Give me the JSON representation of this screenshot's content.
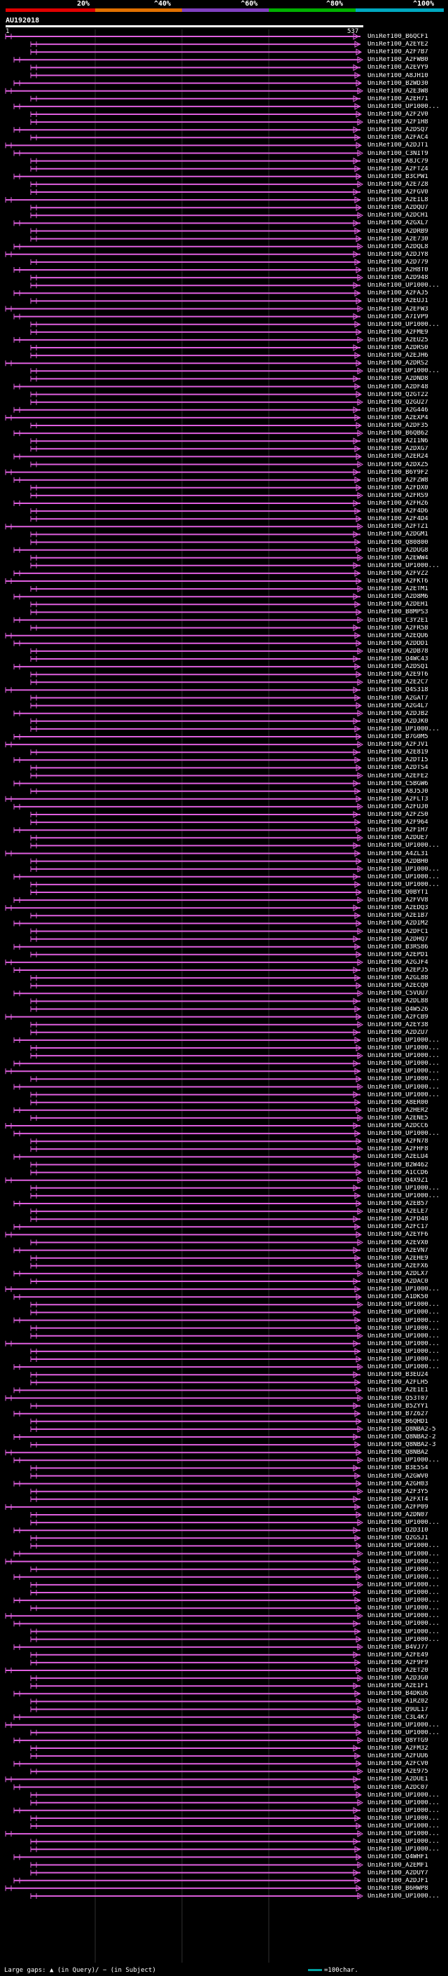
{
  "scale": {
    "labels": [
      "20%",
      "^40%",
      "^60%",
      "^80%",
      "^100%"
    ],
    "colors": [
      "#e00000",
      "#e07000",
      "#8040c0",
      "#00b000",
      "#00a8c0"
    ]
  },
  "query": {
    "name": "AU192018",
    "start": "1",
    "end": "537"
  },
  "hit_color": "#e060e0",
  "chart_data": {
    "type": "alignment-map",
    "query_length": 537,
    "hits": [
      "UniRef100_B6QCF1",
      "UniRef100_A2EYE2",
      "UniRef100_A2F7B7",
      "UniRef100_A2FWB0",
      "UniRef100_A2EVY9",
      "UniRef100_A8JH10",
      "UniRef100_B2WD30",
      "UniRef100_A2E3W8",
      "UniRef100_A2EH71",
      "UniRef100_UP1000...",
      "UniRef100_A2F2V0",
      "UniRef100_A2F1H8",
      "UniRef100_A2DSQ7",
      "UniRef100_A2FAC4",
      "UniRef100_A2DJT1",
      "UniRef100_C3NIT9",
      "UniRef100_A8JC79",
      "UniRef100_A2FTZ4",
      "UniRef100_B3CPW1",
      "UniRef100_A2E7Z8",
      "UniRef100_A2FGV0",
      "UniRef100_A2EIL8",
      "UniRef100_A2DQU7",
      "UniRef100_A2DCH1",
      "UniRef100_A2GXL7",
      "UniRef100_A2DRB9",
      "UniRef100_A2E730",
      "UniRef100_A2DQL8",
      "UniRef100_A2DJY8",
      "UniRef100_A2D779",
      "UniRef100_A2H8T0",
      "UniRef100_A2D948",
      "UniRef100_UP1000...",
      "UniRef100_A2FAJ5",
      "UniRef100_A2EUJ1",
      "UniRef100_A2EFW3",
      "UniRef100_A7IVP9",
      "UniRef100_UP1000...",
      "UniRef100_A2FME9",
      "UniRef100_A2EU25",
      "UniRef100_A2DRS0",
      "UniRef100_A2EJH6",
      "UniRef100_A2DRS2",
      "UniRef100_UP1000...",
      "UniRef100_A2DND8",
      "UniRef100_A2DF48",
      "UniRef100_Q2GT22",
      "UniRef100_Q2GU27",
      "UniRef100_A2G446",
      "UniRef100_A2EXP4",
      "UniRef100_A2DF35",
      "UniRef100_B6QB62",
      "UniRef100_A2I1N6",
      "UniRef100_A2DXG7",
      "UniRef100_A2ER24",
      "UniRef100_A2DXZ5",
      "UniRef100_B6Y9F2",
      "UniRef100_A2FZW8",
      "UniRef100_A2FDX0",
      "UniRef100_A2FRS9",
      "UniRef100_A2FHZ6",
      "UniRef100_A2F4D6",
      "UniRef100_A2F4D4",
      "UniRef100_A2FTZ1",
      "UniRef100_A2DGM1",
      "UniRef100_Q80800",
      "UniRef100_A2DUG8",
      "UniRef100_A2EWW4",
      "UniRef100_UP1000...",
      "UniRef100_A2FVZ2",
      "UniRef100_A2FKT6",
      "UniRef100_A2ETM1",
      "UniRef100_A2D8M6",
      "UniRef100_A2DEH1",
      "UniRef100_B8MPS3",
      "UniRef100_C3Y2E1",
      "UniRef100_A2FR58",
      "UniRef100_A2EQU6",
      "UniRef100_A2DDD1",
      "UniRef100_A2DB78",
      "UniRef100_Q4WC43",
      "UniRef100_A2DSQ1",
      "UniRef100_A2E9T6",
      "UniRef100_A2E2C7",
      "UniRef100_Q4S318",
      "UniRef100_A2GAT7",
      "UniRef100_A2G4L7",
      "UniRef100_A2DJB2",
      "UniRef100_A2DJK0",
      "UniRef100_UP1000...",
      "UniRef100_B7G0M5",
      "UniRef100_A2FJV1",
      "UniRef100_A2E819",
      "UniRef100_A2DTI5",
      "UniRef100_A2DTS4",
      "UniRef100_A2EFE2",
      "UniRef100_C5BGW6",
      "UniRef100_A8J5J0",
      "UniRef100_A2FLT3",
      "UniRef100_A2FUJ0",
      "UniRef100_A2FZS0",
      "UniRef100_A2F964",
      "UniRef100_A2F1H7",
      "UniRef100_A2DUE7",
      "UniRef100_UP1000...",
      "UniRef100_A4ZL31",
      "UniRef100_A2DBH0",
      "UniRef100_UP1000...",
      "UniRef100_UP1000...",
      "UniRef100_UP1000...",
      "UniRef100_Q0BYT1",
      "UniRef100_A2FVV8",
      "UniRef100_A2EDQ3",
      "UniRef100_A2E1B7",
      "UniRef100_A2DIM2",
      "UniRef100_A2DFC1",
      "UniRef100_A2DHQ7",
      "UniRef100_B3RS86",
      "UniRef100_A2EPD1",
      "UniRef100_A2GJF4",
      "UniRef100_A2EPJ5",
      "UniRef100_A2GL88",
      "UniRef100_A2ECQ0",
      "UniRef100_C5VUU7",
      "UniRef100_A2DL88",
      "UniRef100_Q4W526",
      "UniRef100_A2FCB9",
      "UniRef100_A2EY38",
      "UniRef100_A2DZU7",
      "UniRef100_UP1000...",
      "UniRef100_UP1000...",
      "UniRef100_UP1000...",
      "UniRef100_UP1000...",
      "UniRef100_UP1000...",
      "UniRef100_UP1000...",
      "UniRef100_UP1000...",
      "UniRef100_UP1000...",
      "UniRef100_A8ER00",
      "UniRef100_A2HER2",
      "UniRef100_A2ENE5",
      "UniRef100_A2DCC6",
      "UniRef100_UP1000...",
      "UniRef100_A2FN78",
      "UniRef100_A2FHF8",
      "UniRef100_A2ELU4",
      "UniRef100_B2W462",
      "UniRef100_A1CCD6",
      "UniRef100_Q4X9Z1",
      "UniRef100_UP1000...",
      "UniRef100_UP1000...",
      "UniRef100_A2EB57",
      "UniRef100_A2ELE7",
      "UniRef100_A2FD48",
      "UniRef100_A2FC17",
      "UniRef100_A2EYF6",
      "UniRef100_A2EVX0",
      "UniRef100_A2EVN7",
      "UniRef100_A2EHE9",
      "UniRef100_A2EFX6",
      "UniRef100_A2DLX7",
      "UniRef100_A2DAC0",
      "UniRef100_UP1000...",
      "UniRef100_A1DK50",
      "UniRef100_UP1000...",
      "UniRef100_UP1000...",
      "UniRef100_UP1000...",
      "UniRef100_UP1000...",
      "UniRef100_UP1000...",
      "UniRef100_UP1000...",
      "UniRef100_UP1000...",
      "UniRef100_UP1000...",
      "UniRef100_UP1000...",
      "UniRef100_B3EU24",
      "UniRef100_A2FLH5",
      "UniRef100_A2E1E1",
      "UniRef100_Q53T07",
      "UniRef100_B5ZYY1",
      "UniRef100_B7Z627",
      "UniRef100_B6QHD1",
      "UniRef100_Q8NBA2-5",
      "UniRef100_Q8NBA2-2",
      "UniRef100_Q8NBA2-3",
      "UniRef100_Q8NBA2",
      "UniRef100_UP1000...",
      "UniRef100_B3E5S4",
      "UniRef100_A2GWV0",
      "UniRef100_A2GH03",
      "UniRef100_A2F3Y5",
      "UniRef100_A2FXT4",
      "UniRef100_A2FP09",
      "UniRef100_A2DN07",
      "UniRef100_UP1000...",
      "UniRef100_Q2D3I0",
      "UniRef100_Q2GSJ1",
      "UniRef100_UP1000...",
      "UniRef100_UP1000...",
      "UniRef100_UP1000...",
      "UniRef100_UP1000...",
      "UniRef100_UP1000...",
      "UniRef100_UP1000...",
      "UniRef100_UP1000...",
      "UniRef100_UP1000...",
      "UniRef100_UP1000...",
      "UniRef100_UP1000...",
      "UniRef100_UP1000...",
      "UniRef100_UP1000...",
      "UniRef100_UP1000...",
      "UniRef100_B4VJ77",
      "UniRef100_A2FE49",
      "UniRef100_A2F9F9",
      "UniRef100_A2ET20",
      "UniRef100_A2D3G0",
      "UniRef100_A2E1F1",
      "UniRef100_B4DKU6",
      "UniRef100_A1RZ02",
      "UniRef100_Q9UL17",
      "UniRef100_C3L4K7",
      "UniRef100_UP1000...",
      "UniRef100_UP1000...",
      "UniRef100_Q8YTG9",
      "UniRef100_A2FM32",
      "UniRef100_A2FUU6",
      "UniRef100_A2FCV0",
      "UniRef100_A2E975",
      "UniRef100_A2DUE1",
      "UniRef100_A2DC07",
      "UniRef100_UP1000...",
      "UniRef100_UP1000...",
      "UniRef100_UP1000...",
      "UniRef100_UP1000...",
      "UniRef100_UP1000...",
      "UniRef100_UP1000...",
      "UniRef100_UP1000...",
      "UniRef100_UP1000...",
      "UniRef100_Q4WHF1",
      "UniRef100_A2EMF1",
      "UniRef100_A2DUY7",
      "UniRef100_A2DJF1",
      "UniRef100_B6HWP8",
      "UniRef100_UP1000..."
    ]
  },
  "legend": {
    "gaps": "Large gaps: ▲ (in Query)/ − (in Subject)",
    "scale": "=100char."
  }
}
